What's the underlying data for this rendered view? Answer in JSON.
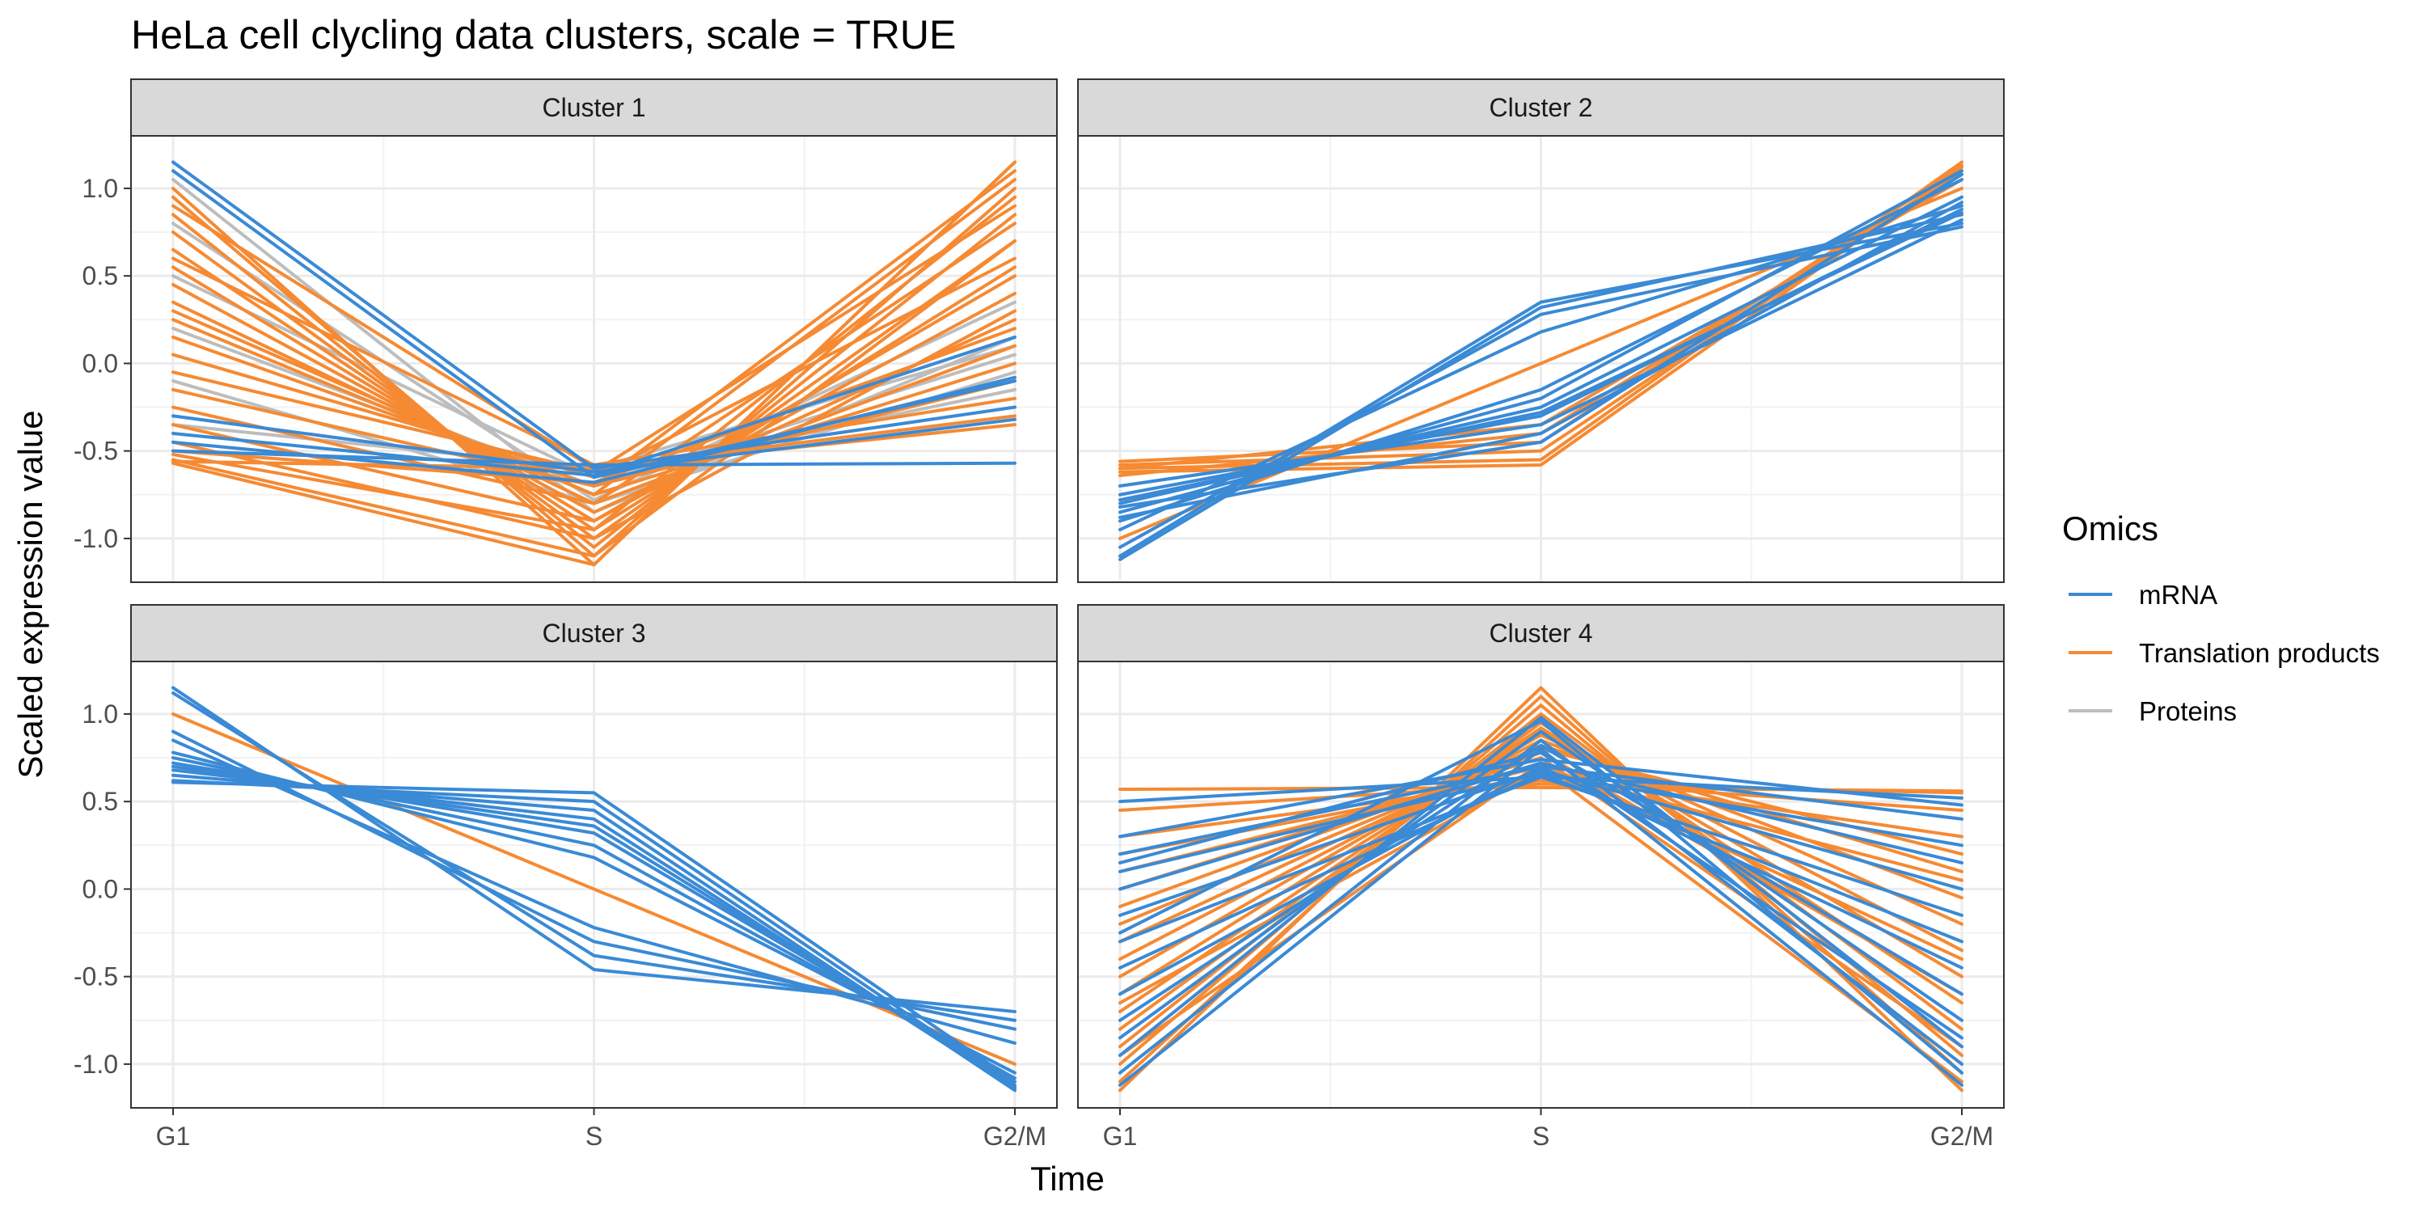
{
  "chart_data": {
    "type": "line",
    "title": "HeLa cell clycling data clusters, scale = TRUE",
    "xlabel": "Time",
    "ylabel": "Scaled expression value",
    "x": [
      "G1",
      "S",
      "G2/M"
    ],
    "ylim": [
      -1.25,
      1.3
    ],
    "yticks": [
      -1.0,
      -0.5,
      0.0,
      0.5,
      1.0
    ],
    "ytick_labels": [
      "-1.0",
      "-0.5",
      "0.0",
      "0.5",
      "1.0"
    ],
    "grid": true,
    "legend": {
      "title": "Omics",
      "position": "right",
      "entries": [
        {
          "name": "mRNA",
          "color": "#3a8ad6"
        },
        {
          "name": "Translation products",
          "color": "#f58a33"
        },
        {
          "name": "Proteins",
          "color": "#bdbdbd"
        }
      ]
    },
    "colors": {
      "mRNA": "#3a8ad6",
      "Translation products": "#f58a33",
      "Proteins": "#bdbdbd"
    },
    "panels": [
      {
        "label": "Cluster 1",
        "series": [
          {
            "omic": "Proteins",
            "values": [
              1.05,
              -0.85,
              0.15
            ]
          },
          {
            "omic": "Proteins",
            "values": [
              0.8,
              -0.78,
              0.35
            ]
          },
          {
            "omic": "Proteins",
            "values": [
              0.2,
              -0.7,
              0.05
            ]
          },
          {
            "omic": "Proteins",
            "values": [
              -0.1,
              -0.8,
              -0.05
            ]
          },
          {
            "omic": "Proteins",
            "values": [
              0.5,
              -0.65,
              -0.15
            ]
          },
          {
            "omic": "Proteins",
            "values": [
              -0.35,
              -0.6,
              0.1
            ]
          },
          {
            "omic": "Translation products",
            "values": [
              1.0,
              -1.15,
              1.15
            ]
          },
          {
            "omic": "Translation products",
            "values": [
              0.95,
              -1.1,
              1.0
            ]
          },
          {
            "omic": "Translation products",
            "values": [
              0.85,
              -1.05,
              0.85
            ]
          },
          {
            "omic": "Translation products",
            "values": [
              0.75,
              -1.0,
              0.7
            ]
          },
          {
            "omic": "Translation products",
            "values": [
              0.65,
              -0.95,
              0.55
            ]
          },
          {
            "omic": "Translation products",
            "values": [
              0.55,
              -0.9,
              0.4
            ]
          },
          {
            "omic": "Translation products",
            "values": [
              0.45,
              -0.85,
              0.25
            ]
          },
          {
            "omic": "Translation products",
            "values": [
              0.35,
              -0.8,
              0.1
            ]
          },
          {
            "omic": "Translation products",
            "values": [
              0.25,
              -0.75,
              0.0
            ]
          },
          {
            "omic": "Translation products",
            "values": [
              0.15,
              -0.7,
              -0.1
            ]
          },
          {
            "omic": "Translation products",
            "values": [
              0.05,
              -0.65,
              0.6
            ]
          },
          {
            "omic": "Translation products",
            "values": [
              -0.05,
              -0.62,
              0.9
            ]
          },
          {
            "omic": "Translation products",
            "values": [
              -0.15,
              -0.7,
              1.1
            ]
          },
          {
            "omic": "Translation products",
            "values": [
              -0.25,
              -0.8,
              0.8
            ]
          },
          {
            "omic": "Translation products",
            "values": [
              -0.35,
              -0.9,
              0.5
            ]
          },
          {
            "omic": "Translation products",
            "values": [
              -0.45,
              -1.0,
              0.3
            ]
          },
          {
            "omic": "Translation products",
            "values": [
              -0.55,
              -1.1,
              0.7
            ]
          },
          {
            "omic": "Translation products",
            "values": [
              -0.57,
              -1.15,
              1.15
            ]
          },
          {
            "omic": "Translation products",
            "values": [
              -0.56,
              -0.6,
              -0.35
            ]
          },
          {
            "omic": "Translation products",
            "values": [
              -0.52,
              -0.95,
              0.95
            ]
          },
          {
            "omic": "Translation products",
            "values": [
              0.9,
              -0.6,
              -0.3
            ]
          },
          {
            "omic": "Translation products",
            "values": [
              0.6,
              -0.58,
              -0.2
            ]
          },
          {
            "omic": "Translation products",
            "values": [
              0.3,
              -0.75,
              1.05
            ]
          },
          {
            "omic": "Translation products",
            "values": [
              -0.5,
              -0.68,
              0.2
            ]
          },
          {
            "omic": "mRNA",
            "values": [
              1.15,
              -0.6,
              -0.25
            ]
          },
          {
            "omic": "mRNA",
            "values": [
              1.1,
              -0.65,
              -0.1
            ]
          },
          {
            "omic": "mRNA",
            "values": [
              -0.3,
              -0.62,
              -0.32
            ]
          },
          {
            "omic": "mRNA",
            "values": [
              -0.45,
              -0.68,
              -0.08
            ]
          },
          {
            "omic": "mRNA",
            "values": [
              -0.5,
              -0.58,
              -0.57
            ]
          },
          {
            "omic": "mRNA",
            "values": [
              -0.4,
              -0.64,
              0.15
            ]
          }
        ]
      },
      {
        "label": "Cluster 2",
        "series": [
          {
            "omic": "mRNA",
            "values": [
              -1.1,
              0.35,
              0.8
            ]
          },
          {
            "omic": "mRNA",
            "values": [
              -1.12,
              0.32,
              0.85
            ]
          },
          {
            "omic": "mRNA",
            "values": [
              -1.05,
              0.28,
              0.78
            ]
          },
          {
            "omic": "mRNA",
            "values": [
              -0.95,
              0.18,
              0.9
            ]
          },
          {
            "omic": "mRNA",
            "values": [
              -0.9,
              -0.15,
              1.05
            ]
          },
          {
            "omic": "mRNA",
            "values": [
              -0.85,
              -0.2,
              1.1
            ]
          },
          {
            "omic": "mRNA",
            "values": [
              -0.8,
              -0.25,
              0.95
            ]
          },
          {
            "omic": "mRNA",
            "values": [
              -0.75,
              -0.3,
              0.88
            ]
          },
          {
            "omic": "mRNA",
            "values": [
              -0.7,
              -0.35,
              0.82
            ]
          },
          {
            "omic": "mRNA",
            "values": [
              -0.88,
              -0.4,
              0.92
            ]
          },
          {
            "omic": "mRNA",
            "values": [
              -0.82,
              -0.45,
              1.08
            ]
          },
          {
            "omic": "mRNA",
            "values": [
              -0.78,
              -0.28,
              0.86
            ]
          },
          {
            "omic": "Translation products",
            "values": [
              -1.0,
              0.0,
              1.0
            ]
          },
          {
            "omic": "Translation products",
            "values": [
              -0.6,
              -0.55,
              1.15
            ]
          },
          {
            "omic": "Translation products",
            "values": [
              -0.62,
              -0.58,
              1.12
            ]
          },
          {
            "omic": "Translation products",
            "values": [
              -0.58,
              -0.5,
              1.1
            ]
          },
          {
            "omic": "Translation products",
            "values": [
              -0.56,
              -0.45,
              1.13
            ]
          },
          {
            "omic": "Translation products",
            "values": [
              -0.64,
              -0.4,
              1.08
            ]
          },
          {
            "omic": "Translation products",
            "values": [
              -0.6,
              -0.35,
              1.05
            ]
          }
        ]
      },
      {
        "label": "Cluster 3",
        "series": [
          {
            "omic": "mRNA",
            "values": [
              1.15,
              -0.46,
              -0.7
            ]
          },
          {
            "omic": "mRNA",
            "values": [
              1.12,
              -0.38,
              -0.75
            ]
          },
          {
            "omic": "mRNA",
            "values": [
              0.9,
              -0.3,
              -0.8
            ]
          },
          {
            "omic": "mRNA",
            "values": [
              0.85,
              -0.22,
              -0.88
            ]
          },
          {
            "omic": "mRNA",
            "values": [
              0.78,
              0.18,
              -1.05
            ]
          },
          {
            "omic": "mRNA",
            "values": [
              0.75,
              0.25,
              -1.08
            ]
          },
          {
            "omic": "mRNA",
            "values": [
              0.72,
              0.32,
              -1.1
            ]
          },
          {
            "omic": "mRNA",
            "values": [
              0.7,
              0.36,
              -1.12
            ]
          },
          {
            "omic": "mRNA",
            "values": [
              0.68,
              0.4,
              -1.14
            ]
          },
          {
            "omic": "mRNA",
            "values": [
              0.65,
              0.45,
              -1.15
            ]
          },
          {
            "omic": "mRNA",
            "values": [
              0.62,
              0.5,
              -1.13
            ]
          },
          {
            "omic": "mRNA",
            "values": [
              0.61,
              0.55,
              -1.1
            ]
          },
          {
            "omic": "Translation products",
            "values": [
              1.0,
              0.0,
              -1.0
            ]
          }
        ]
      },
      {
        "label": "Cluster 4",
        "series": [
          {
            "omic": "Translation products",
            "values": [
              -1.15,
              1.15,
              -1.15
            ]
          },
          {
            "omic": "Translation products",
            "values": [
              -1.1,
              1.1,
              -1.05
            ]
          },
          {
            "omic": "Translation products",
            "values": [
              -1.0,
              1.05,
              -0.95
            ]
          },
          {
            "omic": "Translation products",
            "values": [
              -0.9,
              1.0,
              -0.8
            ]
          },
          {
            "omic": "Translation products",
            "values": [
              -0.8,
              0.95,
              -0.65
            ]
          },
          {
            "omic": "Translation products",
            "values": [
              -0.7,
              0.92,
              -0.5
            ]
          },
          {
            "omic": "Translation products",
            "values": [
              -0.6,
              0.9,
              -0.35
            ]
          },
          {
            "omic": "Translation products",
            "values": [
              -0.5,
              0.88,
              -0.2
            ]
          },
          {
            "omic": "Translation products",
            "values": [
              -0.4,
              0.85,
              -0.05
            ]
          },
          {
            "omic": "Translation products",
            "values": [
              -0.3,
              0.82,
              0.1
            ]
          },
          {
            "omic": "Translation products",
            "values": [
              -0.2,
              0.8,
              0.2
            ]
          },
          {
            "omic": "Translation products",
            "values": [
              -0.1,
              0.78,
              -0.6
            ]
          },
          {
            "omic": "Translation products",
            "values": [
              0.0,
              0.75,
              -0.9
            ]
          },
          {
            "omic": "Translation products",
            "values": [
              0.1,
              0.7,
              -1.1
            ]
          },
          {
            "omic": "Translation products",
            "values": [
              0.2,
              0.65,
              0.3
            ]
          },
          {
            "omic": "Translation products",
            "values": [
              0.3,
              0.62,
              0.45
            ]
          },
          {
            "omic": "Translation products",
            "values": [
              0.45,
              0.6,
              0.55
            ]
          },
          {
            "omic": "Translation products",
            "values": [
              0.57,
              0.58,
              0.56
            ]
          },
          {
            "omic": "Translation products",
            "values": [
              -0.95,
              0.72,
              -0.4
            ]
          },
          {
            "omic": "Translation products",
            "values": [
              -0.65,
              0.68,
              0.05
            ]
          },
          {
            "omic": "mRNA",
            "values": [
              -1.12,
              0.8,
              -1.12
            ]
          },
          {
            "omic": "mRNA",
            "values": [
              -1.05,
              0.85,
              -1.0
            ]
          },
          {
            "omic": "mRNA",
            "values": [
              -0.95,
              0.98,
              -0.9
            ]
          },
          {
            "omic": "mRNA",
            "values": [
              -0.85,
              0.9,
              -0.75
            ]
          },
          {
            "omic": "mRNA",
            "values": [
              -0.75,
              0.82,
              -0.6
            ]
          },
          {
            "omic": "mRNA",
            "values": [
              -0.6,
              0.7,
              -0.45
            ]
          },
          {
            "omic": "mRNA",
            "values": [
              -0.45,
              0.66,
              -0.3
            ]
          },
          {
            "omic": "mRNA",
            "values": [
              -0.3,
              0.64,
              -0.15
            ]
          },
          {
            "omic": "mRNA",
            "values": [
              -0.15,
              0.68,
              0.0
            ]
          },
          {
            "omic": "mRNA",
            "values": [
              0.0,
              0.72,
              0.15
            ]
          },
          {
            "omic": "mRNA",
            "values": [
              0.1,
              0.66,
              0.25
            ]
          },
          {
            "omic": "mRNA",
            "values": [
              0.2,
              0.7,
              0.4
            ]
          },
          {
            "omic": "mRNA",
            "values": [
              0.3,
              0.74,
              0.48
            ]
          },
          {
            "omic": "mRNA",
            "values": [
              0.5,
              0.64,
              0.52
            ]
          },
          {
            "omic": "mRNA",
            "values": [
              -0.25,
              0.96,
              -1.05
            ]
          },
          {
            "omic": "mRNA",
            "values": [
              0.15,
              0.78,
              -0.85
            ]
          }
        ]
      }
    ]
  }
}
